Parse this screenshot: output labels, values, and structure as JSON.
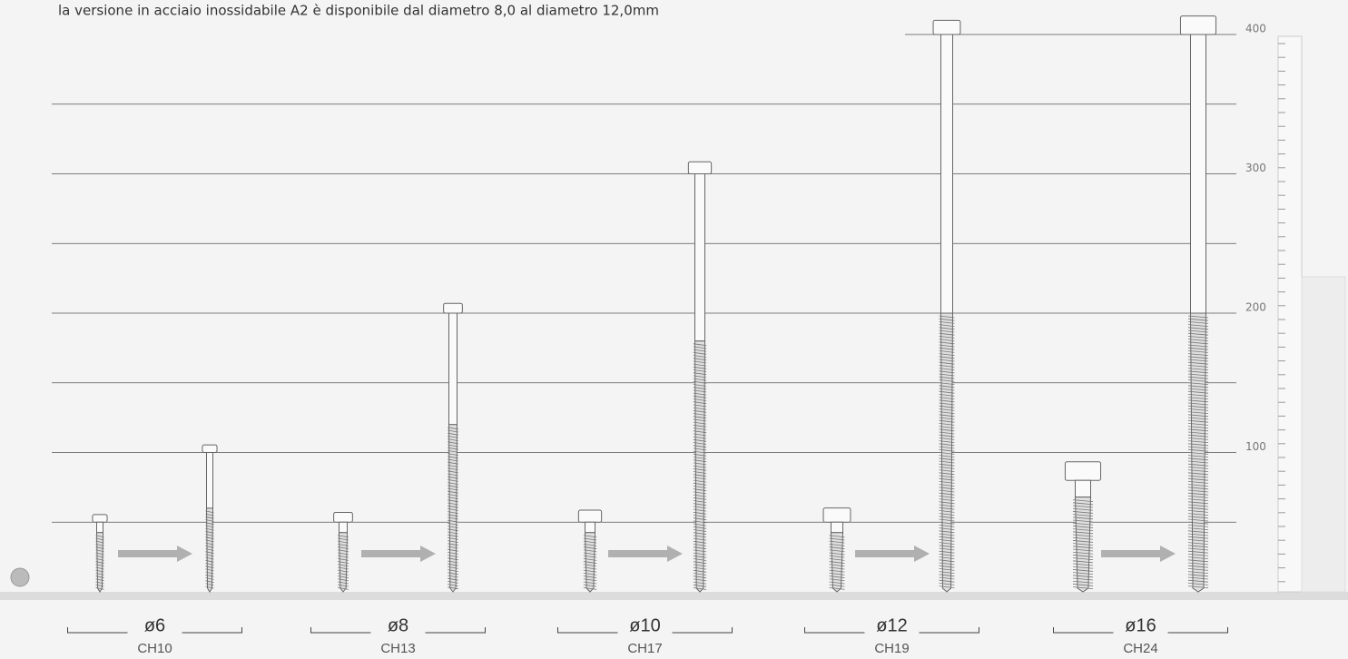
{
  "chart_data": {
    "type": "range",
    "subtitle": "la versione in acciaio inossidabile A2 è disponibile dal diametro 8,0 al diametro 12,0mm",
    "categories": [
      "ø6",
      "ø8",
      "ø10",
      "ø12",
      "ø16"
    ],
    "sublabels": [
      "CH10",
      "CH13",
      "CH17",
      "CH19",
      "CH24"
    ],
    "low": [
      50,
      50,
      50,
      50,
      80
    ],
    "high": [
      100,
      200,
      300,
      400,
      400
    ],
    "ylim": [
      0,
      400
    ],
    "yticks": [
      100,
      200,
      300,
      400
    ],
    "minor_ticks": [
      50,
      150,
      250,
      350
    ],
    "grid": true
  }
}
